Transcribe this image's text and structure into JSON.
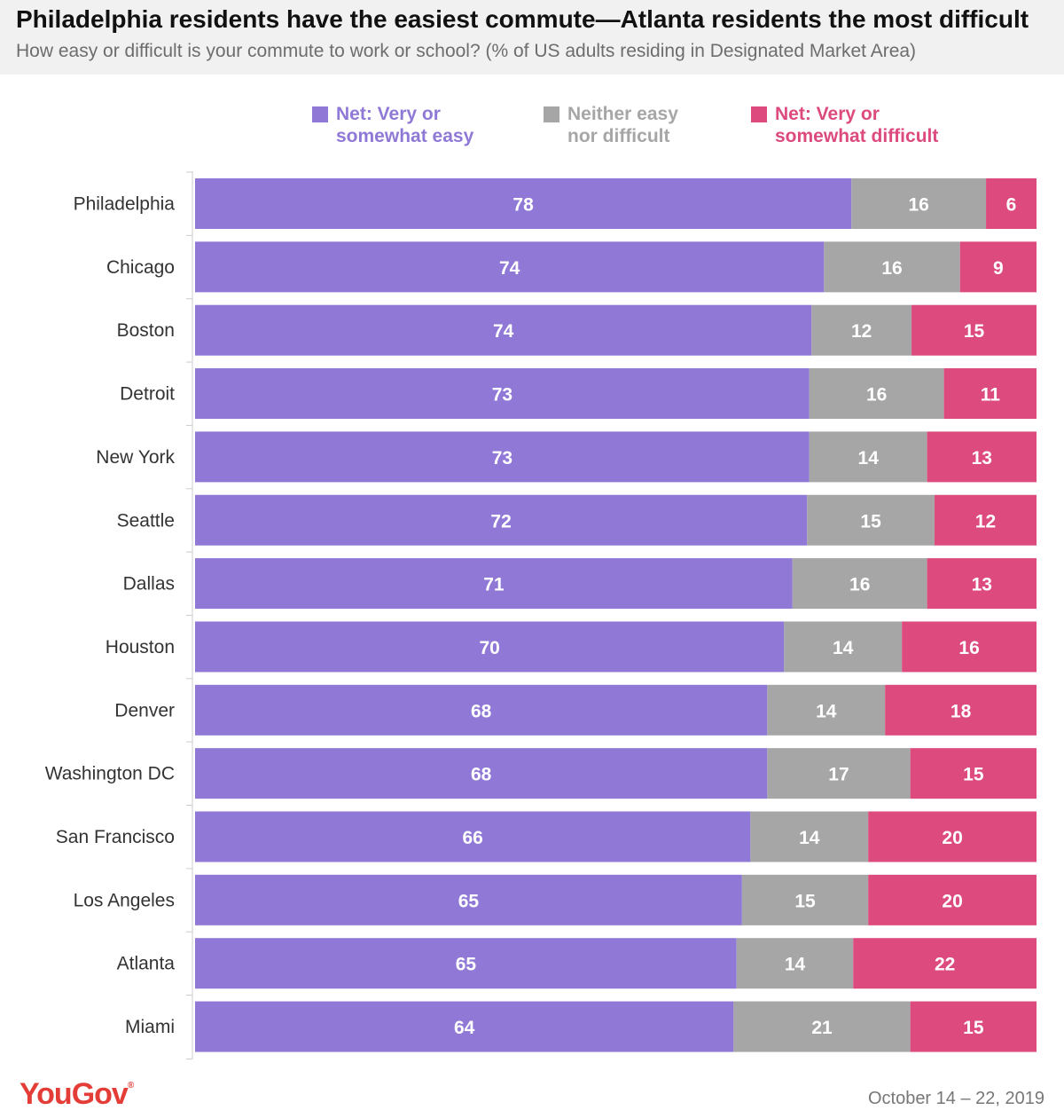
{
  "header": {
    "title": "Philadelphia residents have the easiest commute—Atlanta residents the most difficult",
    "subtitle": "How easy or difficult is your commute to work or school? (% of US adults residing in Designated Market Area)"
  },
  "legend": [
    {
      "line1": "Net: Very or",
      "line2": "somewhat easy",
      "color": "#9079d6"
    },
    {
      "line1": "Neither easy",
      "line2": "nor difficult",
      "color": "#a6a6a6"
    },
    {
      "line1": "Net: Very or",
      "line2": "somewhat difficult",
      "color": "#dc4a7e"
    }
  ],
  "chart_data": {
    "type": "bar",
    "orientation": "horizontal",
    "stacked": true,
    "categories": [
      "Philadelphia",
      "Chicago",
      "Boston",
      "Detroit",
      "New York",
      "Seattle",
      "Dallas",
      "Houston",
      "Denver",
      "Washington DC",
      "San Francisco",
      "Los Angeles",
      "Atlanta",
      "Miami"
    ],
    "series": [
      {
        "name": "Net: Very or somewhat easy",
        "color": "#9079d6",
        "values": [
          78,
          74,
          74,
          73,
          73,
          72,
          71,
          70,
          68,
          68,
          66,
          65,
          65,
          64
        ]
      },
      {
        "name": "Neither easy nor difficult",
        "color": "#a6a6a6",
        "values": [
          16,
          16,
          12,
          16,
          14,
          15,
          16,
          14,
          14,
          17,
          14,
          15,
          14,
          21
        ]
      },
      {
        "name": "Net: Very or somewhat difficult",
        "color": "#dc4a7e",
        "values": [
          6,
          9,
          15,
          11,
          13,
          12,
          13,
          16,
          18,
          15,
          20,
          20,
          22,
          15
        ]
      }
    ],
    "legend_position": "top",
    "grid": false
  },
  "footer": {
    "logo": "YouGov",
    "date": "October 14 – 22, 2019"
  }
}
